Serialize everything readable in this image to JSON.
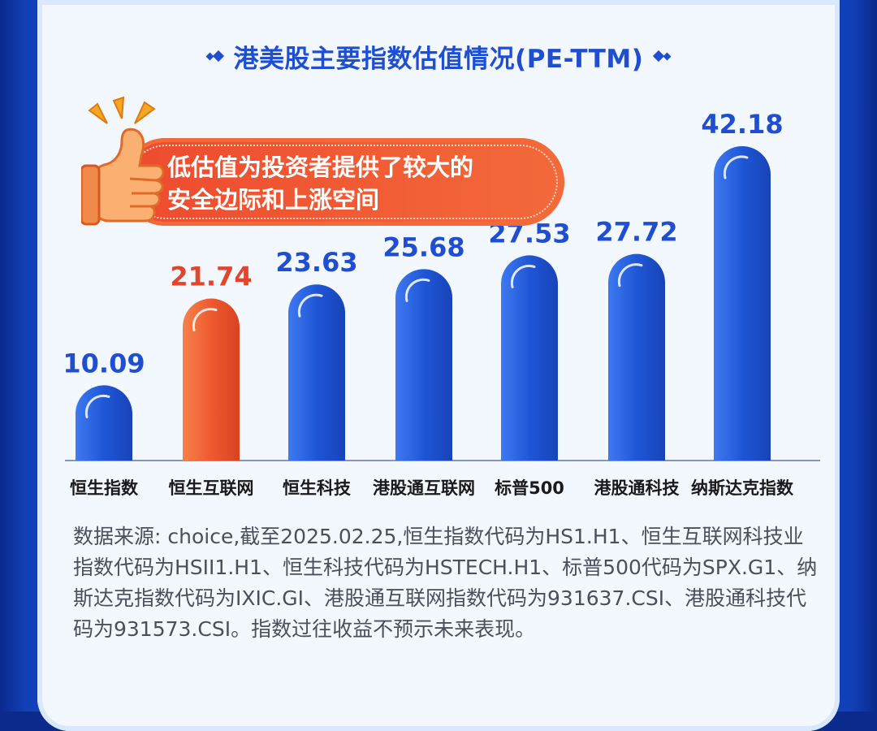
{
  "title": "港美股主要指数估值情况(PE-TTM)",
  "callout": {
    "line1": "低估值为投资者提供了较大的",
    "line2": "安全边际和上涨空间"
  },
  "note": "数据来源: choice,截至2025.02.25,恒生指数代码为HS1.H1、恒生互联网科技业指数代码为HSII1.H1、恒生科技代码为HSTECH.H1、标普500代码为SPX.G1、纳斯达克指数代码为IXIC.GI、港股通互联网指数代码为931637.CSI、港股通科技代码为931573.CSI。指数过往收益不预示未来表现。",
  "colors": {
    "bar_blue": "#1f56d6",
    "bar_highlight": "#ef5a30",
    "label_blue": "#1f4fd0",
    "label_highlight": "#e2452b"
  },
  "chart_data": {
    "type": "bar",
    "categories": [
      "恒生指数",
      "恒生互联网",
      "恒生科技",
      "港股通互联网",
      "标普500",
      "港股通科技",
      "纳斯达克指数"
    ],
    "values": [
      10.09,
      21.74,
      23.63,
      25.68,
      27.53,
      27.72,
      42.18
    ],
    "value_labels": [
      "10.09",
      "21.74",
      "23.63",
      "25.68",
      "27.53",
      "27.72",
      "42.18"
    ],
    "highlight_index": 1,
    "ylim": [
      0,
      42.18
    ],
    "grid": false,
    "legend": "none"
  }
}
